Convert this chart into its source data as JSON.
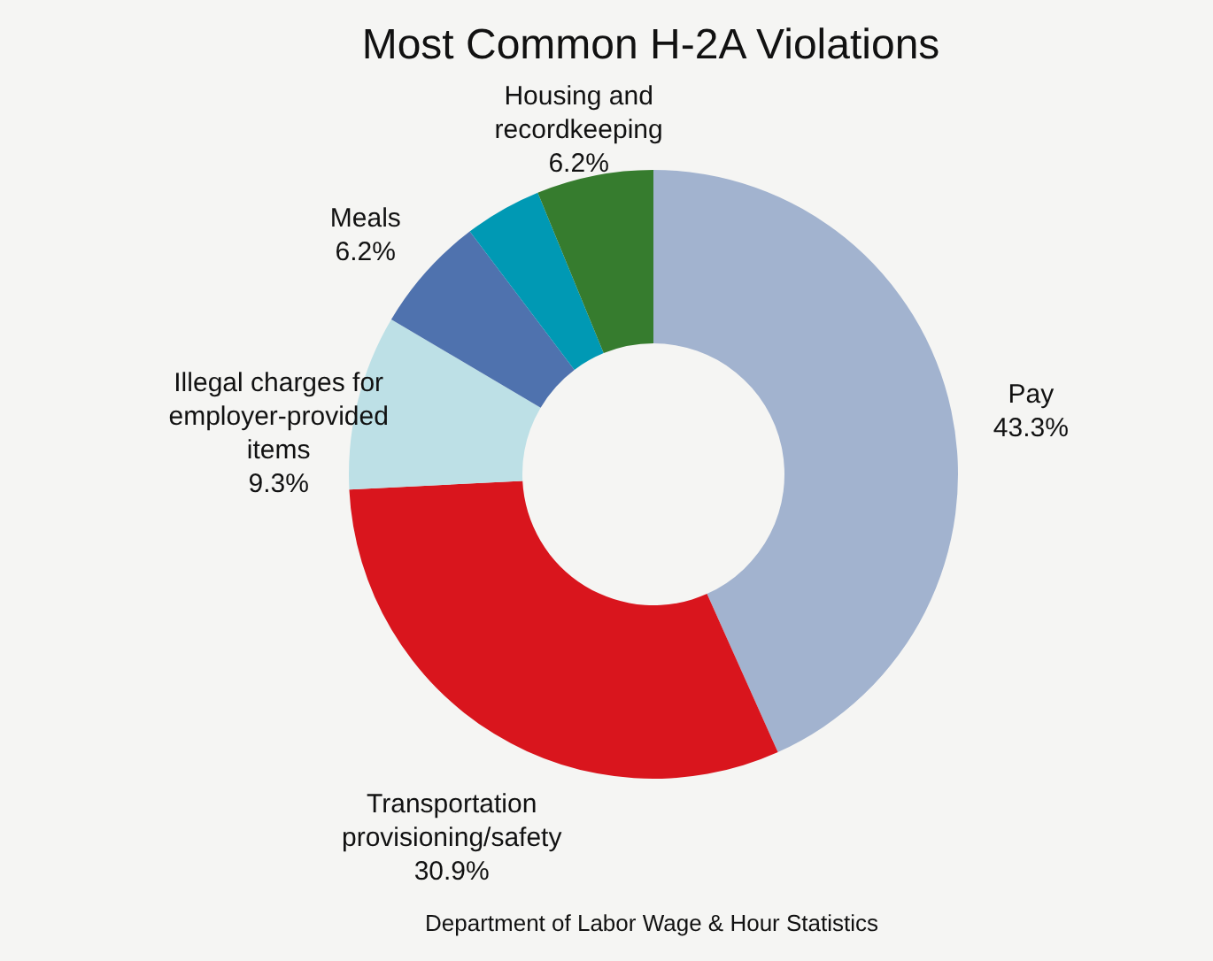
{
  "chart_data": {
    "type": "donut",
    "title": "Most Common H-2A Violations",
    "categories": [
      "Pay",
      "Transportation provisioning/safety",
      "Illegal charges for employer-provided items",
      "Meals",
      null,
      "Housing and recordkeeping"
    ],
    "values": [
      43.3,
      30.9,
      9.3,
      6.2,
      4.1,
      6.2
    ],
    "value_labels": [
      "43.3%",
      "30.9%",
      "9.3%",
      "6.2%",
      null,
      "6.2%"
    ],
    "colors": [
      "#a2b3cf",
      "#d9151d",
      "#bde0e6",
      "#4f72ae",
      "#0099b4",
      "#367c2e"
    ],
    "legend": false,
    "annotations": [
      "Department of Labor Wage & Hour Statistics"
    ]
  }
}
